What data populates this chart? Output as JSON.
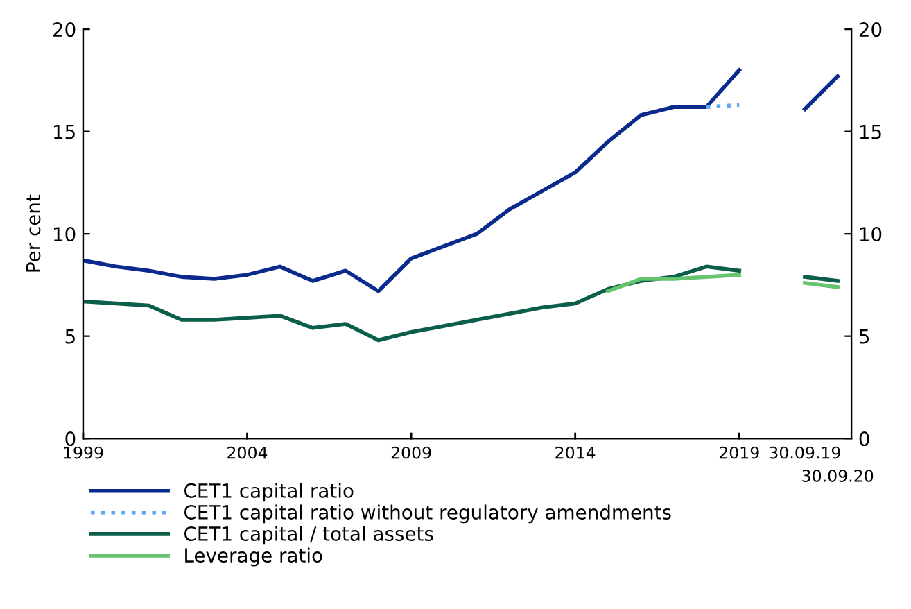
{
  "chart_data": {
    "type": "line",
    "ylabel": "Per cent",
    "categories": [
      "1999",
      null,
      null,
      null,
      null,
      "2004",
      null,
      null,
      null,
      null,
      "2009",
      null,
      null,
      null,
      null,
      "2014",
      null,
      null,
      null,
      null,
      "2019",
      null,
      "30.09.19",
      "30.09.20"
    ],
    "series": [
      {
        "name": "CET1 capital ratio",
        "color": "#0a2a8c",
        "line_style": "solid",
        "values": [
          8.7,
          8.4,
          8.2,
          7.9,
          7.8,
          8.0,
          8.4,
          7.7,
          8.2,
          7.2,
          8.8,
          9.4,
          10.0,
          11.2,
          12.1,
          13.0,
          14.5,
          15.8,
          16.2,
          16.2,
          18.0,
          null,
          16.1,
          17.7
        ]
      },
      {
        "name": "CET1 capital ratio without regulatory amendments",
        "color": "#5aa8f5",
        "line_style": "dotted",
        "values": [
          null,
          null,
          null,
          null,
          null,
          null,
          null,
          null,
          null,
          null,
          null,
          null,
          null,
          null,
          null,
          null,
          null,
          null,
          null,
          16.2,
          16.3,
          null,
          null,
          null
        ]
      },
      {
        "name": "CET1 capital / total assets",
        "color": "#0b5e4a",
        "line_style": "solid",
        "values": [
          6.7,
          6.6,
          6.5,
          5.8,
          5.8,
          5.9,
          6.0,
          5.4,
          5.6,
          4.8,
          5.2,
          5.5,
          5.8,
          6.1,
          6.4,
          6.6,
          7.3,
          7.7,
          7.9,
          8.4,
          8.2,
          null,
          7.9,
          7.7
        ]
      },
      {
        "name": "Leverage ratio",
        "color": "#66c36e",
        "line_style": "solid",
        "values": [
          null,
          null,
          null,
          null,
          null,
          null,
          null,
          null,
          null,
          null,
          null,
          null,
          null,
          null,
          null,
          null,
          7.2,
          7.8,
          7.8,
          7.9,
          8.0,
          null,
          7.6,
          7.4
        ]
      }
    ],
    "ylim": [
      0,
      20
    ],
    "yticks": [
      0,
      5,
      10,
      15,
      20
    ],
    "y2lim": [
      0,
      20
    ],
    "y2ticks": [
      0,
      5,
      10,
      15,
      20
    ],
    "grid": false,
    "legend": "bottom",
    "marker": "none"
  }
}
